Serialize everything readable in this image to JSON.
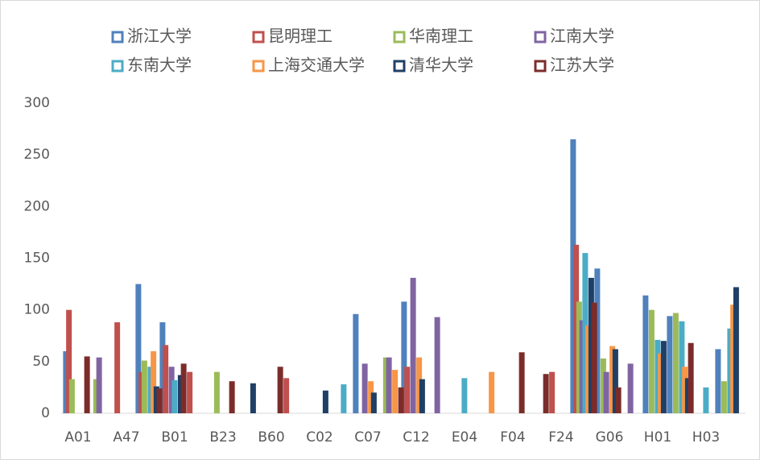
{
  "chart_data": {
    "type": "bar",
    "categories": [
      "A01",
      null,
      "A47",
      null,
      "B01",
      null,
      "B23",
      null,
      "B60",
      null,
      "C02",
      null,
      "C07",
      null,
      "C12",
      null,
      "E04",
      null,
      "F04",
      null,
      "F24",
      null,
      "G06",
      null,
      "H01",
      null,
      "H03",
      null
    ],
    "series": [
      {
        "name": "浙江大学",
        "color": "#4f81bd",
        "values": [
          60,
          null,
          null,
          125,
          88,
          null,
          null,
          null,
          null,
          null,
          null,
          null,
          96,
          null,
          108,
          null,
          null,
          null,
          null,
          null,
          null,
          265,
          140,
          null,
          114,
          94,
          null,
          62
        ]
      },
      {
        "name": "昆明理工",
        "color": "#c0504d",
        "values": [
          100,
          null,
          88,
          40,
          66,
          40,
          null,
          null,
          null,
          34,
          null,
          null,
          null,
          null,
          45,
          null,
          null,
          null,
          null,
          null,
          40,
          163,
          null,
          null,
          null,
          null,
          null,
          null
        ]
      },
      {
        "name": "华南理工",
        "color": "#9bbb59",
        "values": [
          33,
          33,
          null,
          51,
          null,
          null,
          40,
          null,
          null,
          null,
          null,
          null,
          null,
          54,
          null,
          null,
          null,
          null,
          null,
          null,
          null,
          108,
          53,
          null,
          100,
          97,
          null,
          31
        ]
      },
      {
        "name": "江南大学",
        "color": "#8064a2",
        "values": [
          null,
          54,
          null,
          null,
          45,
          null,
          null,
          null,
          null,
          null,
          null,
          null,
          48,
          54,
          131,
          93,
          null,
          null,
          null,
          null,
          null,
          90,
          40,
          48,
          null,
          null,
          null,
          null
        ]
      },
      {
        "name": "东南大学",
        "color": "#4bacc6",
        "values": [
          null,
          null,
          null,
          45,
          32,
          null,
          null,
          null,
          null,
          null,
          null,
          28,
          null,
          null,
          null,
          null,
          34,
          null,
          null,
          null,
          null,
          155,
          null,
          null,
          71,
          89,
          25,
          82
        ]
      },
      {
        "name": "上海交通大学",
        "color": "#f79646",
        "values": [
          null,
          null,
          null,
          60,
          null,
          null,
          null,
          null,
          null,
          null,
          null,
          null,
          31,
          42,
          54,
          null,
          null,
          40,
          null,
          null,
          null,
          85,
          65,
          null,
          58,
          45,
          null,
          105
        ]
      },
      {
        "name": "清华大学",
        "color": "#1f3f66",
        "values": [
          null,
          null,
          null,
          26,
          37,
          null,
          null,
          29,
          null,
          null,
          22,
          null,
          20,
          null,
          33,
          null,
          null,
          null,
          null,
          null,
          null,
          131,
          62,
          null,
          70,
          34,
          null,
          122
        ]
      },
      {
        "name": "江苏大学",
        "color": "#7b2c2a",
        "values": [
          55,
          null,
          null,
          24,
          48,
          null,
          31,
          null,
          45,
          null,
          null,
          null,
          null,
          25,
          null,
          null,
          null,
          null,
          59,
          38,
          null,
          107,
          25,
          null,
          null,
          68,
          null,
          null
        ]
      }
    ],
    "ylim": [
      0,
      300
    ],
    "yticks": [
      0,
      50,
      100,
      150,
      200,
      250,
      300
    ]
  }
}
